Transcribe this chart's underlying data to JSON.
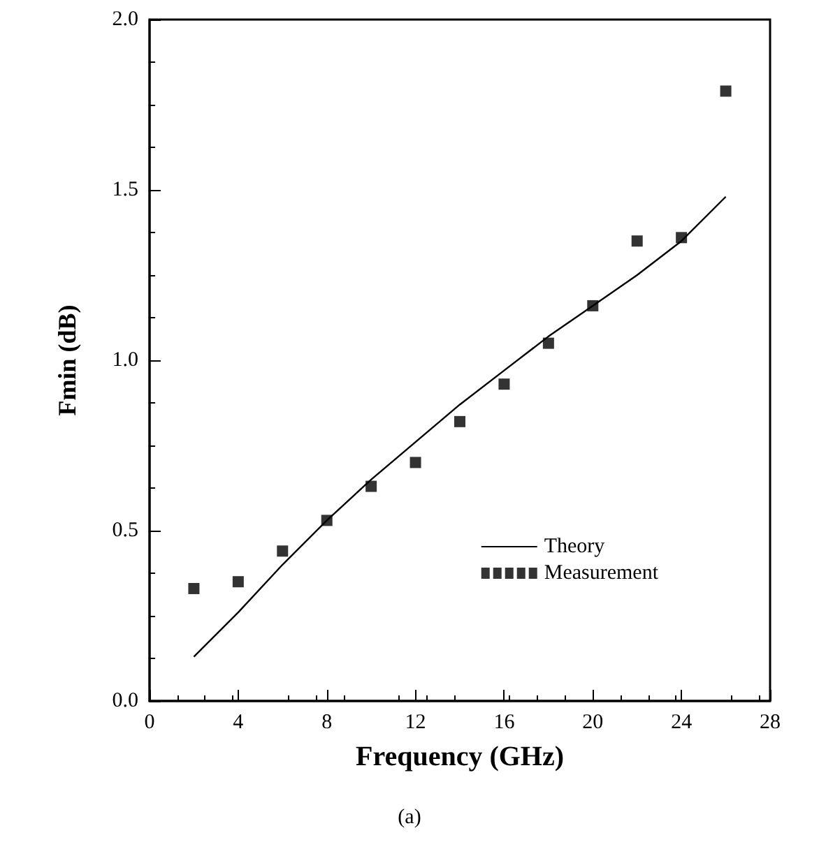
{
  "chart_data": {
    "type": "scatter",
    "xlabel": "Frequency (GHz)",
    "ylabel": "Fmin (dB)",
    "annotations": [
      "(a)"
    ],
    "xlim": [
      0,
      28
    ],
    "xticks": [
      0,
      4,
      8,
      12,
      16,
      20,
      24,
      28
    ],
    "ylim": [
      0,
      2
    ],
    "yticks": [
      {
        "value": 0,
        "label": "0.0"
      },
      0.5,
      {
        "value": 1,
        "label": "1.0"
      },
      1.5,
      {
        "value": 2,
        "label": "2.0"
      }
    ],
    "grid": false,
    "legend": "bottom right",
    "series": [
      {
        "name": "Theory",
        "type": "line",
        "color": "#000000",
        "line_style": "solid",
        "marker": "none",
        "x": [
          2,
          4,
          6,
          8,
          10,
          12,
          14,
          16,
          18,
          20,
          22,
          24,
          26
        ],
        "values": [
          0.13,
          0.26,
          0.4,
          0.53,
          0.65,
          0.76,
          0.87,
          0.97,
          1.07,
          1.16,
          1.25,
          1.35,
          1.48
        ]
      },
      {
        "name": "Measurement",
        "color": "#000000",
        "marker": "square",
        "x": [
          2,
          4,
          6,
          8,
          10,
          12,
          14,
          16,
          18,
          20,
          22,
          24,
          26
        ],
        "values": [
          0.33,
          0.35,
          0.44,
          0.53,
          0.63,
          0.7,
          0.82,
          0.93,
          1.05,
          1.16,
          1.35,
          1.36,
          1.79
        ]
      }
    ]
  }
}
